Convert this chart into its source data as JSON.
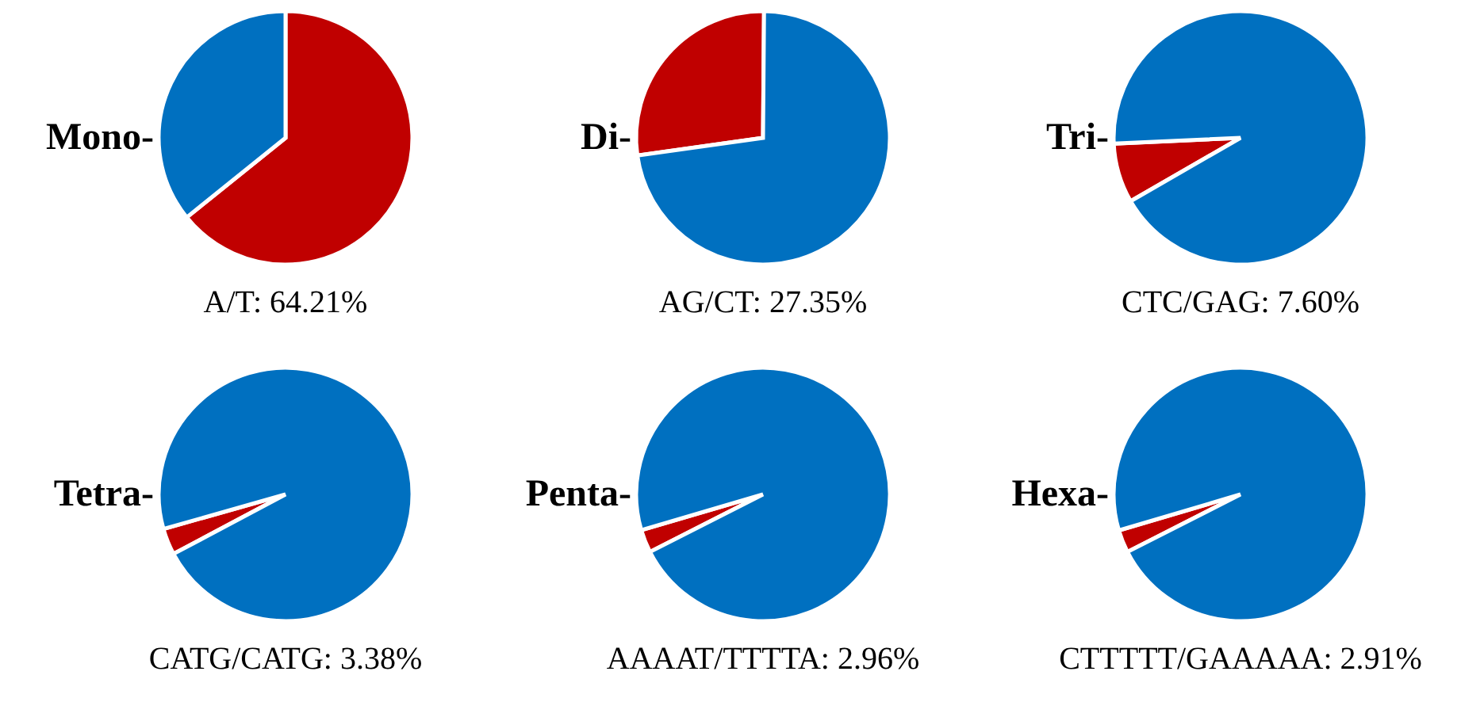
{
  "chart_data": [
    {
      "type": "pie",
      "title": "Mono-",
      "categories": [
        null,
        null
      ],
      "values": [
        64.21,
        35.79
      ],
      "colors": [
        "#c00000",
        "#0070c0"
      ],
      "annotations": [
        "A/T: 64.21%"
      ]
    },
    {
      "type": "pie",
      "title": "Di-",
      "categories": [
        null,
        null
      ],
      "values": [
        27.35,
        72.65
      ],
      "colors": [
        "#c00000",
        "#0070c0"
      ],
      "annotations": [
        "AG/CT: 27.35%"
      ]
    },
    {
      "type": "pie",
      "title": "Tri-",
      "categories": [
        null,
        null
      ],
      "values": [
        7.6,
        92.4
      ],
      "colors": [
        "#c00000",
        "#0070c0"
      ],
      "annotations": [
        "CTC/GAG: 7.60%"
      ]
    },
    {
      "type": "pie",
      "title": "Tetra-",
      "categories": [
        null,
        null
      ],
      "values": [
        3.38,
        96.62
      ],
      "colors": [
        "#c00000",
        "#0070c0"
      ],
      "annotations": [
        "CATG/CATG: 3.38%"
      ]
    },
    {
      "type": "pie",
      "title": "Penta-",
      "categories": [
        null,
        null
      ],
      "values": [
        2.96,
        97.04
      ],
      "colors": [
        "#c00000",
        "#0070c0"
      ],
      "annotations": [
        "AAAAT/TTTTA: 2.96%"
      ]
    },
    {
      "type": "pie",
      "title": "Hexa-",
      "categories": [
        null,
        null
      ],
      "values": [
        2.91,
        97.09
      ],
      "colors": [
        "#c00000",
        "#0070c0"
      ],
      "annotations": [
        "CTTTTT/GAAAAA: 2.91%"
      ]
    }
  ]
}
